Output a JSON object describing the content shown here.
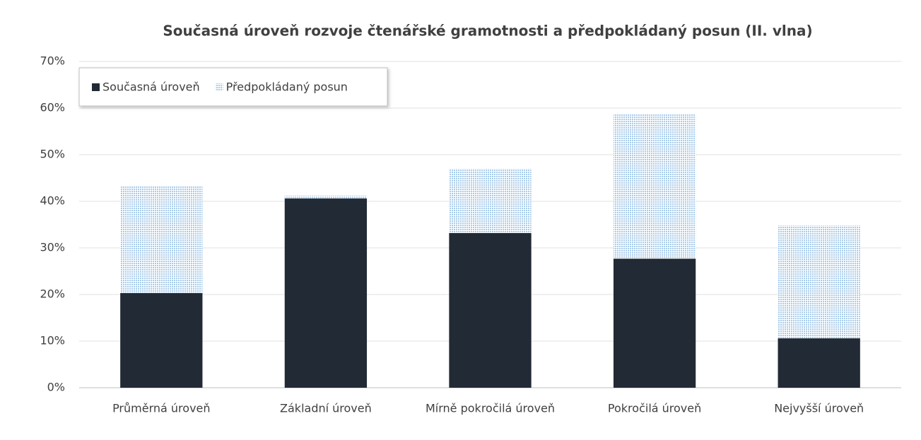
{
  "chart_data": {
    "type": "stacked_bar",
    "title": "Současná úroveň rozvoje čtenářské gramotnosti a předpokládaný posun (II. vlna)",
    "categories": [
      "Průměrná úroveň",
      "Základní úroveň",
      "Mírně pokročilá úroveň",
      "Pokročilá úroveň",
      "Nejvyšší úroveň"
    ],
    "series": [
      {
        "name": "Současná úroveň",
        "color": "#222a35",
        "values": [
          20.3,
          40.6,
          33.2,
          27.7,
          10.6
        ]
      },
      {
        "name": "Předpokládaný posun",
        "color": "#c3dbf0",
        "values": [
          23.0,
          0.6,
          13.8,
          31.1,
          24.2
        ]
      }
    ],
    "ylim": [
      0,
      70
    ],
    "yticks": [
      {
        "value": 0,
        "label": "0%"
      },
      {
        "value": 10,
        "label": "10%"
      },
      {
        "value": 20,
        "label": "20%"
      },
      {
        "value": 30,
        "label": "30%"
      },
      {
        "value": 40,
        "label": "40%"
      },
      {
        "value": 50,
        "label": "50%"
      },
      {
        "value": 60,
        "label": "60%"
      },
      {
        "value": 70,
        "label": "70%"
      }
    ],
    "grid": true,
    "legend": "top-left"
  }
}
